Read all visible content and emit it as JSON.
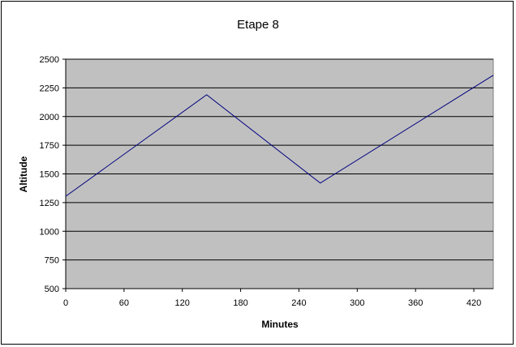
{
  "chart_data": {
    "type": "line",
    "title": "Etape 8",
    "xlabel": "Minutes",
    "ylabel": "Altitude",
    "xlim": [
      0,
      440
    ],
    "ylim": [
      500,
      2500
    ],
    "xticks": [
      "0",
      "60",
      "120",
      "180",
      "240",
      "300",
      "360",
      "420"
    ],
    "yticks": [
      "500",
      "750",
      "1000",
      "1250",
      "1500",
      "1750",
      "2000",
      "2250",
      "2500"
    ],
    "grid": true,
    "legend": "none",
    "colors": {
      "plot_background": "#c0c0c0",
      "line": "#000080",
      "gridline": "#000000"
    },
    "series": [
      {
        "x": [
          0,
          145,
          262,
          440
        ],
        "y": [
          1305,
          2190,
          1420,
          2360
        ]
      }
    ]
  }
}
